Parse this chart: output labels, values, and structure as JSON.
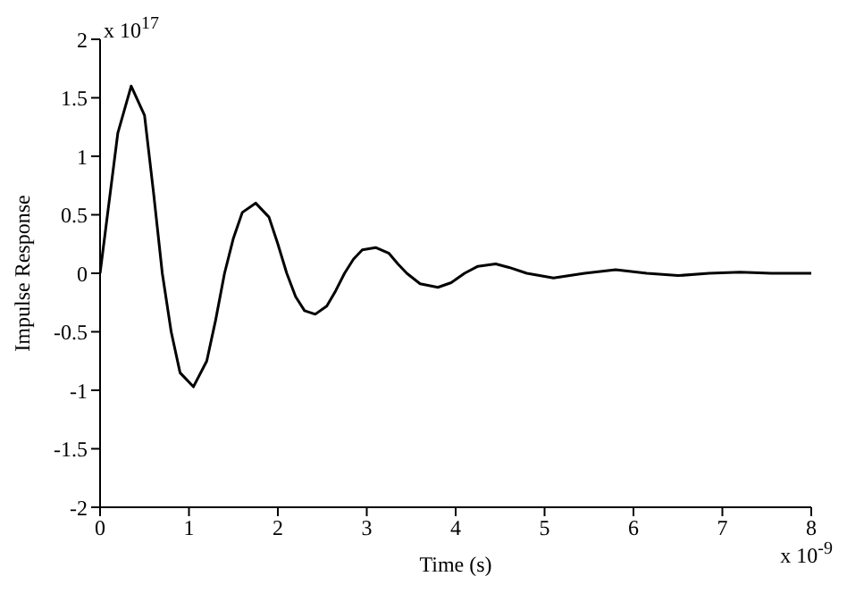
{
  "chart_data": {
    "type": "line",
    "xlabel": "Time (s)",
    "ylabel": "Impulse Response",
    "annotations": [
      "x 10$^{17}$",
      "x 10$^{-9}$"
    ],
    "x": [
      0,
      0.1,
      0.2,
      0.35,
      0.5,
      0.6,
      0.7,
      0.8,
      0.9,
      1.05,
      1.2,
      1.3,
      1.4,
      1.5,
      1.6,
      1.75,
      1.9,
      2.0,
      2.1,
      2.2,
      2.3,
      2.42,
      2.55,
      2.65,
      2.75,
      2.85,
      2.95,
      3.1,
      3.25,
      3.35,
      3.45,
      3.6,
      3.8,
      3.95,
      4.1,
      4.25,
      4.45,
      4.6,
      4.8,
      5.1,
      5.45,
      5.8,
      6.15,
      6.5,
      6.85,
      7.2,
      7.55,
      8
    ],
    "series": [
      {
        "color": "#000000",
        "values": [
          0,
          0.6,
          1.2,
          1.6,
          1.35,
          0.7,
          0,
          -0.5,
          -0.85,
          -0.97,
          -0.75,
          -0.4,
          0,
          0.3,
          0.52,
          0.6,
          0.48,
          0.25,
          0,
          -0.2,
          -0.32,
          -0.35,
          -0.28,
          -0.15,
          0,
          0.12,
          0.2,
          0.22,
          0.17,
          0.08,
          0,
          -0.09,
          -0.12,
          -0.08,
          0,
          0.06,
          0.08,
          0.05,
          0,
          -0.04,
          0,
          0.03,
          0,
          -0.02,
          0,
          0.01,
          0,
          0
        ]
      }
    ],
    "xlim": [
      0,
      8
    ],
    "xticks": [
      0,
      1,
      2,
      3,
      4,
      5,
      6,
      7,
      8
    ],
    "ylim": [
      -2,
      2
    ],
    "yticks": [
      -2,
      -1.5,
      -1,
      -0.5,
      0,
      0.5,
      1,
      1.5,
      2
    ],
    "grid": false,
    "legend": false,
    "marker": "none",
    "line_style": "solid"
  }
}
